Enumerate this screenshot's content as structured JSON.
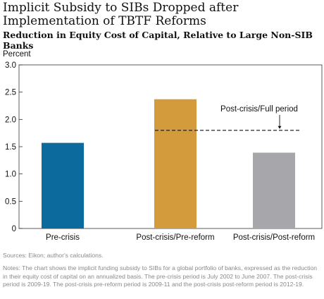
{
  "title": "Implicit Subsidy to SIBs Dropped after Implementation of TBTF Reforms",
  "subtitle": "Reduction in Equity Cost of Capital, Relative to Large Non-SIB Banks",
  "source": "Sources: Eikon; author's calculations.",
  "notes": "Notes: The chart shows the implicit funding subsidy to SIBs for a global portfolio of banks, expressed as the reduction in their equity cost of capital on an annualized basis. The pre-crisis period is July 2002 to June 2007. The post-crisis period is 2009-19. The post-crisis pre-reform period is 2009-11 and the post-crisis post-reform period is 2012-19.",
  "colors": {
    "bar_1": "#0d6a9c",
    "bar_2": "#d39b3b",
    "bar_3": "#a6a6ab",
    "axis": "#333333",
    "reference_line": "#111111"
  },
  "chart_data": {
    "type": "bar",
    "title": "Implicit Subsidy to SIBs Dropped after Implementation of TBTF Reforms",
    "subtitle": "Reduction in Equity Cost of Capital, Relative to Large Non-SIB Banks",
    "ylabel": "Percent",
    "xlabel": "",
    "categories": [
      "Pre-crisis",
      "Post-crisis/Pre-reform",
      "Post-crisis/Post-reform"
    ],
    "values": [
      1.57,
      2.37,
      1.39
    ],
    "ylim": [
      0,
      3.0
    ],
    "yticks": [
      "0",
      "0.5",
      "1.0",
      "1.5",
      "2.0",
      "2.5",
      "3.0"
    ],
    "ytick_values": [
      0,
      0.5,
      1.0,
      1.5,
      2.0,
      2.5,
      3.0
    ],
    "reference_line": {
      "label": "Post-crisis/Full period",
      "value": 1.8,
      "style": "dashed"
    },
    "grid": false,
    "legend": "none"
  }
}
